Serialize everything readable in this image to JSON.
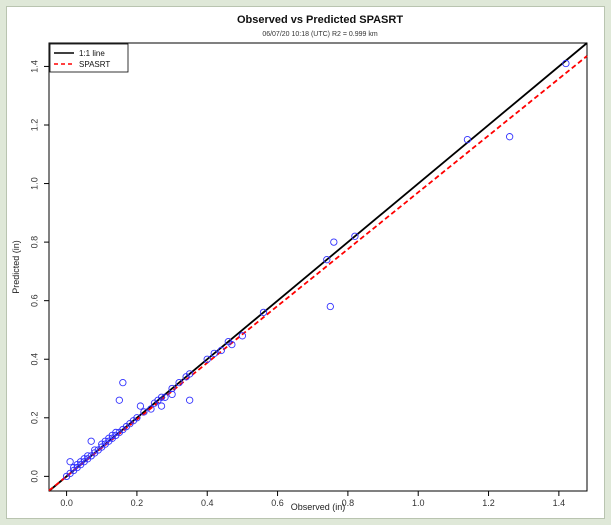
{
  "chart_data": {
    "type": "scatter",
    "title": "Observed vs Predicted SPASRT",
    "subtitle": "06/07/20 10:18 (UTC) R2 = 0.999 km",
    "xlabel": "Observed (in)",
    "ylabel": "Predicted (in)",
    "xlim": [
      -0.05,
      1.48
    ],
    "ylim": [
      -0.05,
      1.48
    ],
    "x_ticks": [
      {
        "value": 0.0,
        "label": "0.0"
      },
      {
        "value": 0.2,
        "label": "0.2"
      },
      {
        "value": 0.4,
        "label": "0.4"
      },
      {
        "value": 0.6,
        "label": "0.6"
      },
      {
        "value": 0.8,
        "label": "0.8"
      },
      {
        "value": 1.0,
        "label": "1.0"
      },
      {
        "value": 1.2,
        "label": "1.2"
      },
      {
        "value": 1.4,
        "label": "1.4"
      }
    ],
    "y_ticks": [
      {
        "value": 0.0,
        "label": "0.0"
      },
      {
        "value": 0.2,
        "label": "0.2"
      },
      {
        "value": 0.4,
        "label": "0.4"
      },
      {
        "value": 0.6,
        "label": "0.6"
      },
      {
        "value": 0.8,
        "label": "0.8"
      },
      {
        "value": 1.0,
        "label": "1.0"
      },
      {
        "value": 1.2,
        "label": "1.2"
      },
      {
        "value": 1.4,
        "label": "1.4"
      }
    ],
    "grid": false,
    "legend_position": "top-left",
    "lines": [
      {
        "name": "1:1 line",
        "color": "#000000",
        "style": "solid",
        "slope": 1.0,
        "intercept": 0.0
      },
      {
        "name": "SPASRT",
        "color": "#ff0000",
        "style": "dashed",
        "slope": 0.97,
        "intercept": 0.0
      }
    ],
    "points_color": "#3333ff",
    "points": [
      [
        0.0,
        0.0
      ],
      [
        0.01,
        0.05
      ],
      [
        0.01,
        0.01
      ],
      [
        0.02,
        0.02
      ],
      [
        0.02,
        0.03
      ],
      [
        0.03,
        0.03
      ],
      [
        0.03,
        0.04
      ],
      [
        0.04,
        0.04
      ],
      [
        0.04,
        0.05
      ],
      [
        0.05,
        0.05
      ],
      [
        0.05,
        0.06
      ],
      [
        0.06,
        0.06
      ],
      [
        0.06,
        0.07
      ],
      [
        0.07,
        0.07
      ],
      [
        0.07,
        0.12
      ],
      [
        0.08,
        0.08
      ],
      [
        0.08,
        0.09
      ],
      [
        0.09,
        0.09
      ],
      [
        0.1,
        0.1
      ],
      [
        0.1,
        0.11
      ],
      [
        0.11,
        0.11
      ],
      [
        0.11,
        0.12
      ],
      [
        0.12,
        0.12
      ],
      [
        0.12,
        0.13
      ],
      [
        0.13,
        0.13
      ],
      [
        0.13,
        0.14
      ],
      [
        0.14,
        0.14
      ],
      [
        0.14,
        0.15
      ],
      [
        0.15,
        0.15
      ],
      [
        0.15,
        0.26
      ],
      [
        0.16,
        0.32
      ],
      [
        0.16,
        0.16
      ],
      [
        0.17,
        0.17
      ],
      [
        0.18,
        0.18
      ],
      [
        0.19,
        0.19
      ],
      [
        0.2,
        0.2
      ],
      [
        0.21,
        0.24
      ],
      [
        0.22,
        0.22
      ],
      [
        0.24,
        0.23
      ],
      [
        0.25,
        0.25
      ],
      [
        0.26,
        0.26
      ],
      [
        0.27,
        0.24
      ],
      [
        0.27,
        0.27
      ],
      [
        0.28,
        0.27
      ],
      [
        0.3,
        0.3
      ],
      [
        0.3,
        0.28
      ],
      [
        0.32,
        0.32
      ],
      [
        0.34,
        0.34
      ],
      [
        0.35,
        0.35
      ],
      [
        0.35,
        0.26
      ],
      [
        0.4,
        0.4
      ],
      [
        0.42,
        0.42
      ],
      [
        0.44,
        0.43
      ],
      [
        0.46,
        0.46
      ],
      [
        0.47,
        0.45
      ],
      [
        0.5,
        0.48
      ],
      [
        0.56,
        0.56
      ],
      [
        0.74,
        0.74
      ],
      [
        0.75,
        0.58
      ],
      [
        0.76,
        0.8
      ],
      [
        0.82,
        0.82
      ],
      [
        1.14,
        1.15
      ],
      [
        1.26,
        1.16
      ],
      [
        1.42,
        1.41
      ]
    ]
  }
}
